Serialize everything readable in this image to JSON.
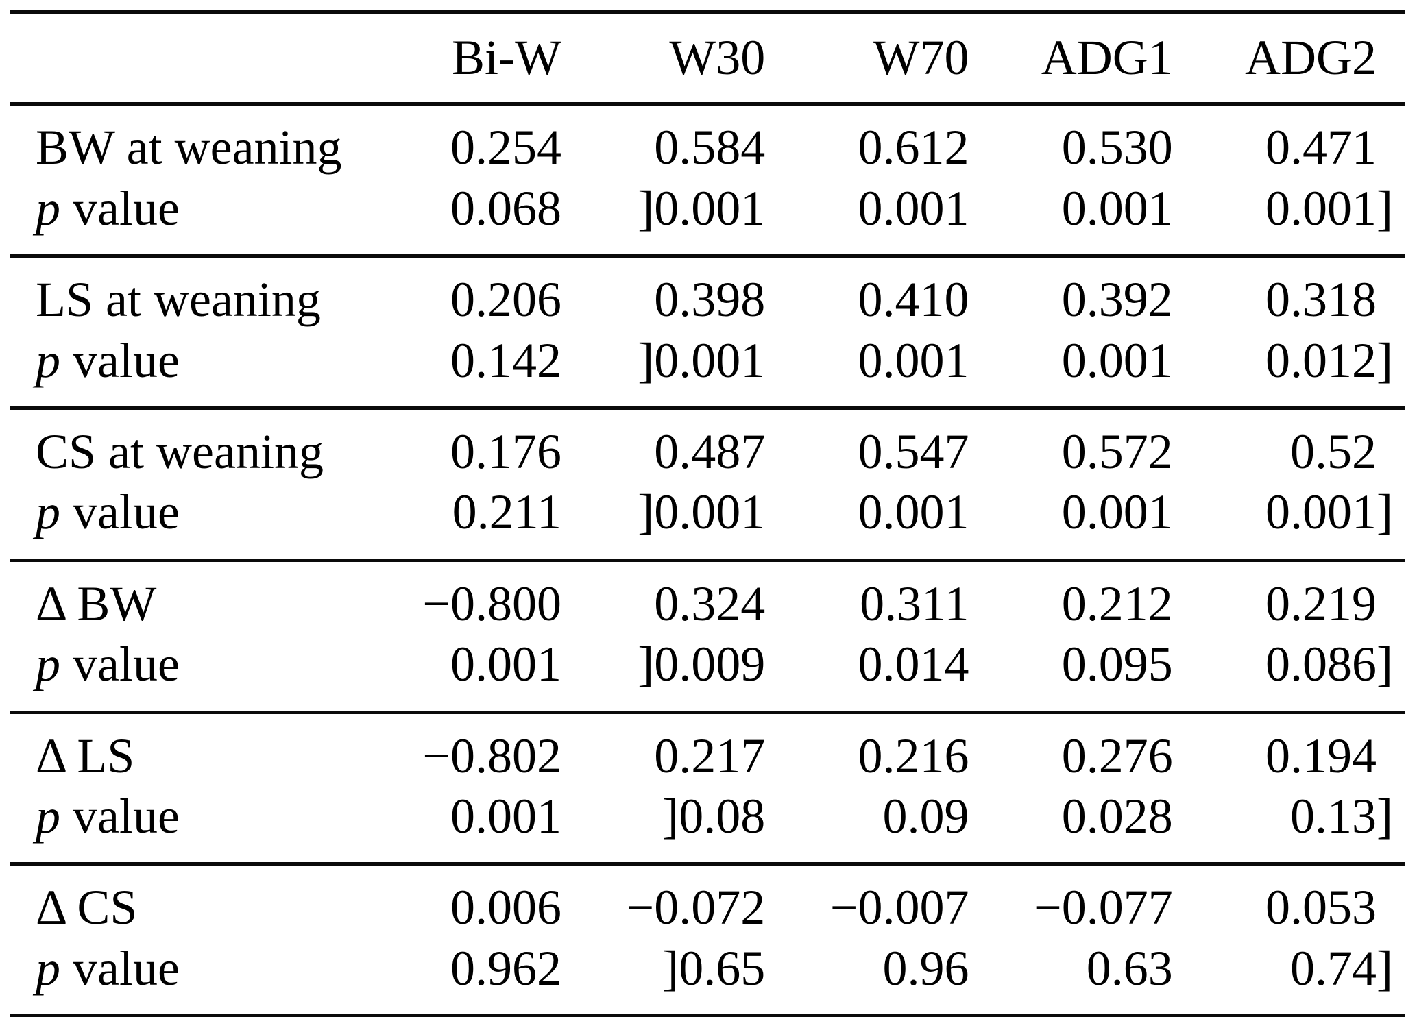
{
  "table": {
    "columns": [
      "Bi-W",
      "W30",
      "W70",
      "ADG1",
      "ADG2"
    ],
    "p_row_label": {
      "italic": "p",
      "rest": "value"
    },
    "groups": [
      {
        "label": "BW at weaning",
        "values": [
          "0.254",
          "0.584",
          "0.612",
          "0.530",
          "0.471"
        ],
        "p_values": [
          "0.068",
          "[0.001",
          "0.001",
          "0.001",
          "0.001]"
        ]
      },
      {
        "label": "LS at weaning",
        "values": [
          "0.206",
          "0.398",
          "0.410",
          "0.392",
          "0.318"
        ],
        "p_values": [
          "0.142",
          "[0.001",
          "0.001",
          "0.001",
          "0.012]"
        ]
      },
      {
        "label": "CS at weaning",
        "values": [
          "0.176",
          "0.487",
          "0.547",
          "0.572",
          "0.52"
        ],
        "p_values": [
          "0.211",
          "[0.001",
          "0.001",
          "0.001",
          "0.001]"
        ]
      },
      {
        "label": "Δ BW",
        "values": [
          "−0.800",
          "0.324",
          "0.311",
          "0.212",
          "0.219"
        ],
        "p_values": [
          "0.001",
          "[0.009",
          "0.014",
          "0.095",
          "0.086]"
        ]
      },
      {
        "label": "Δ LS",
        "values": [
          "−0.802",
          "0.217",
          "0.216",
          "0.276",
          "0.194"
        ],
        "p_values": [
          "0.001",
          "[0.08",
          "0.09",
          "0.028",
          "0.13]"
        ]
      },
      {
        "label": "Δ CS",
        "values": [
          "0.006",
          "−0.072",
          "−0.007",
          "−0.077",
          "0.053"
        ],
        "p_values": [
          "0.962",
          "[0.65",
          "0.96",
          "0.63",
          "0.74]"
        ]
      }
    ]
  }
}
